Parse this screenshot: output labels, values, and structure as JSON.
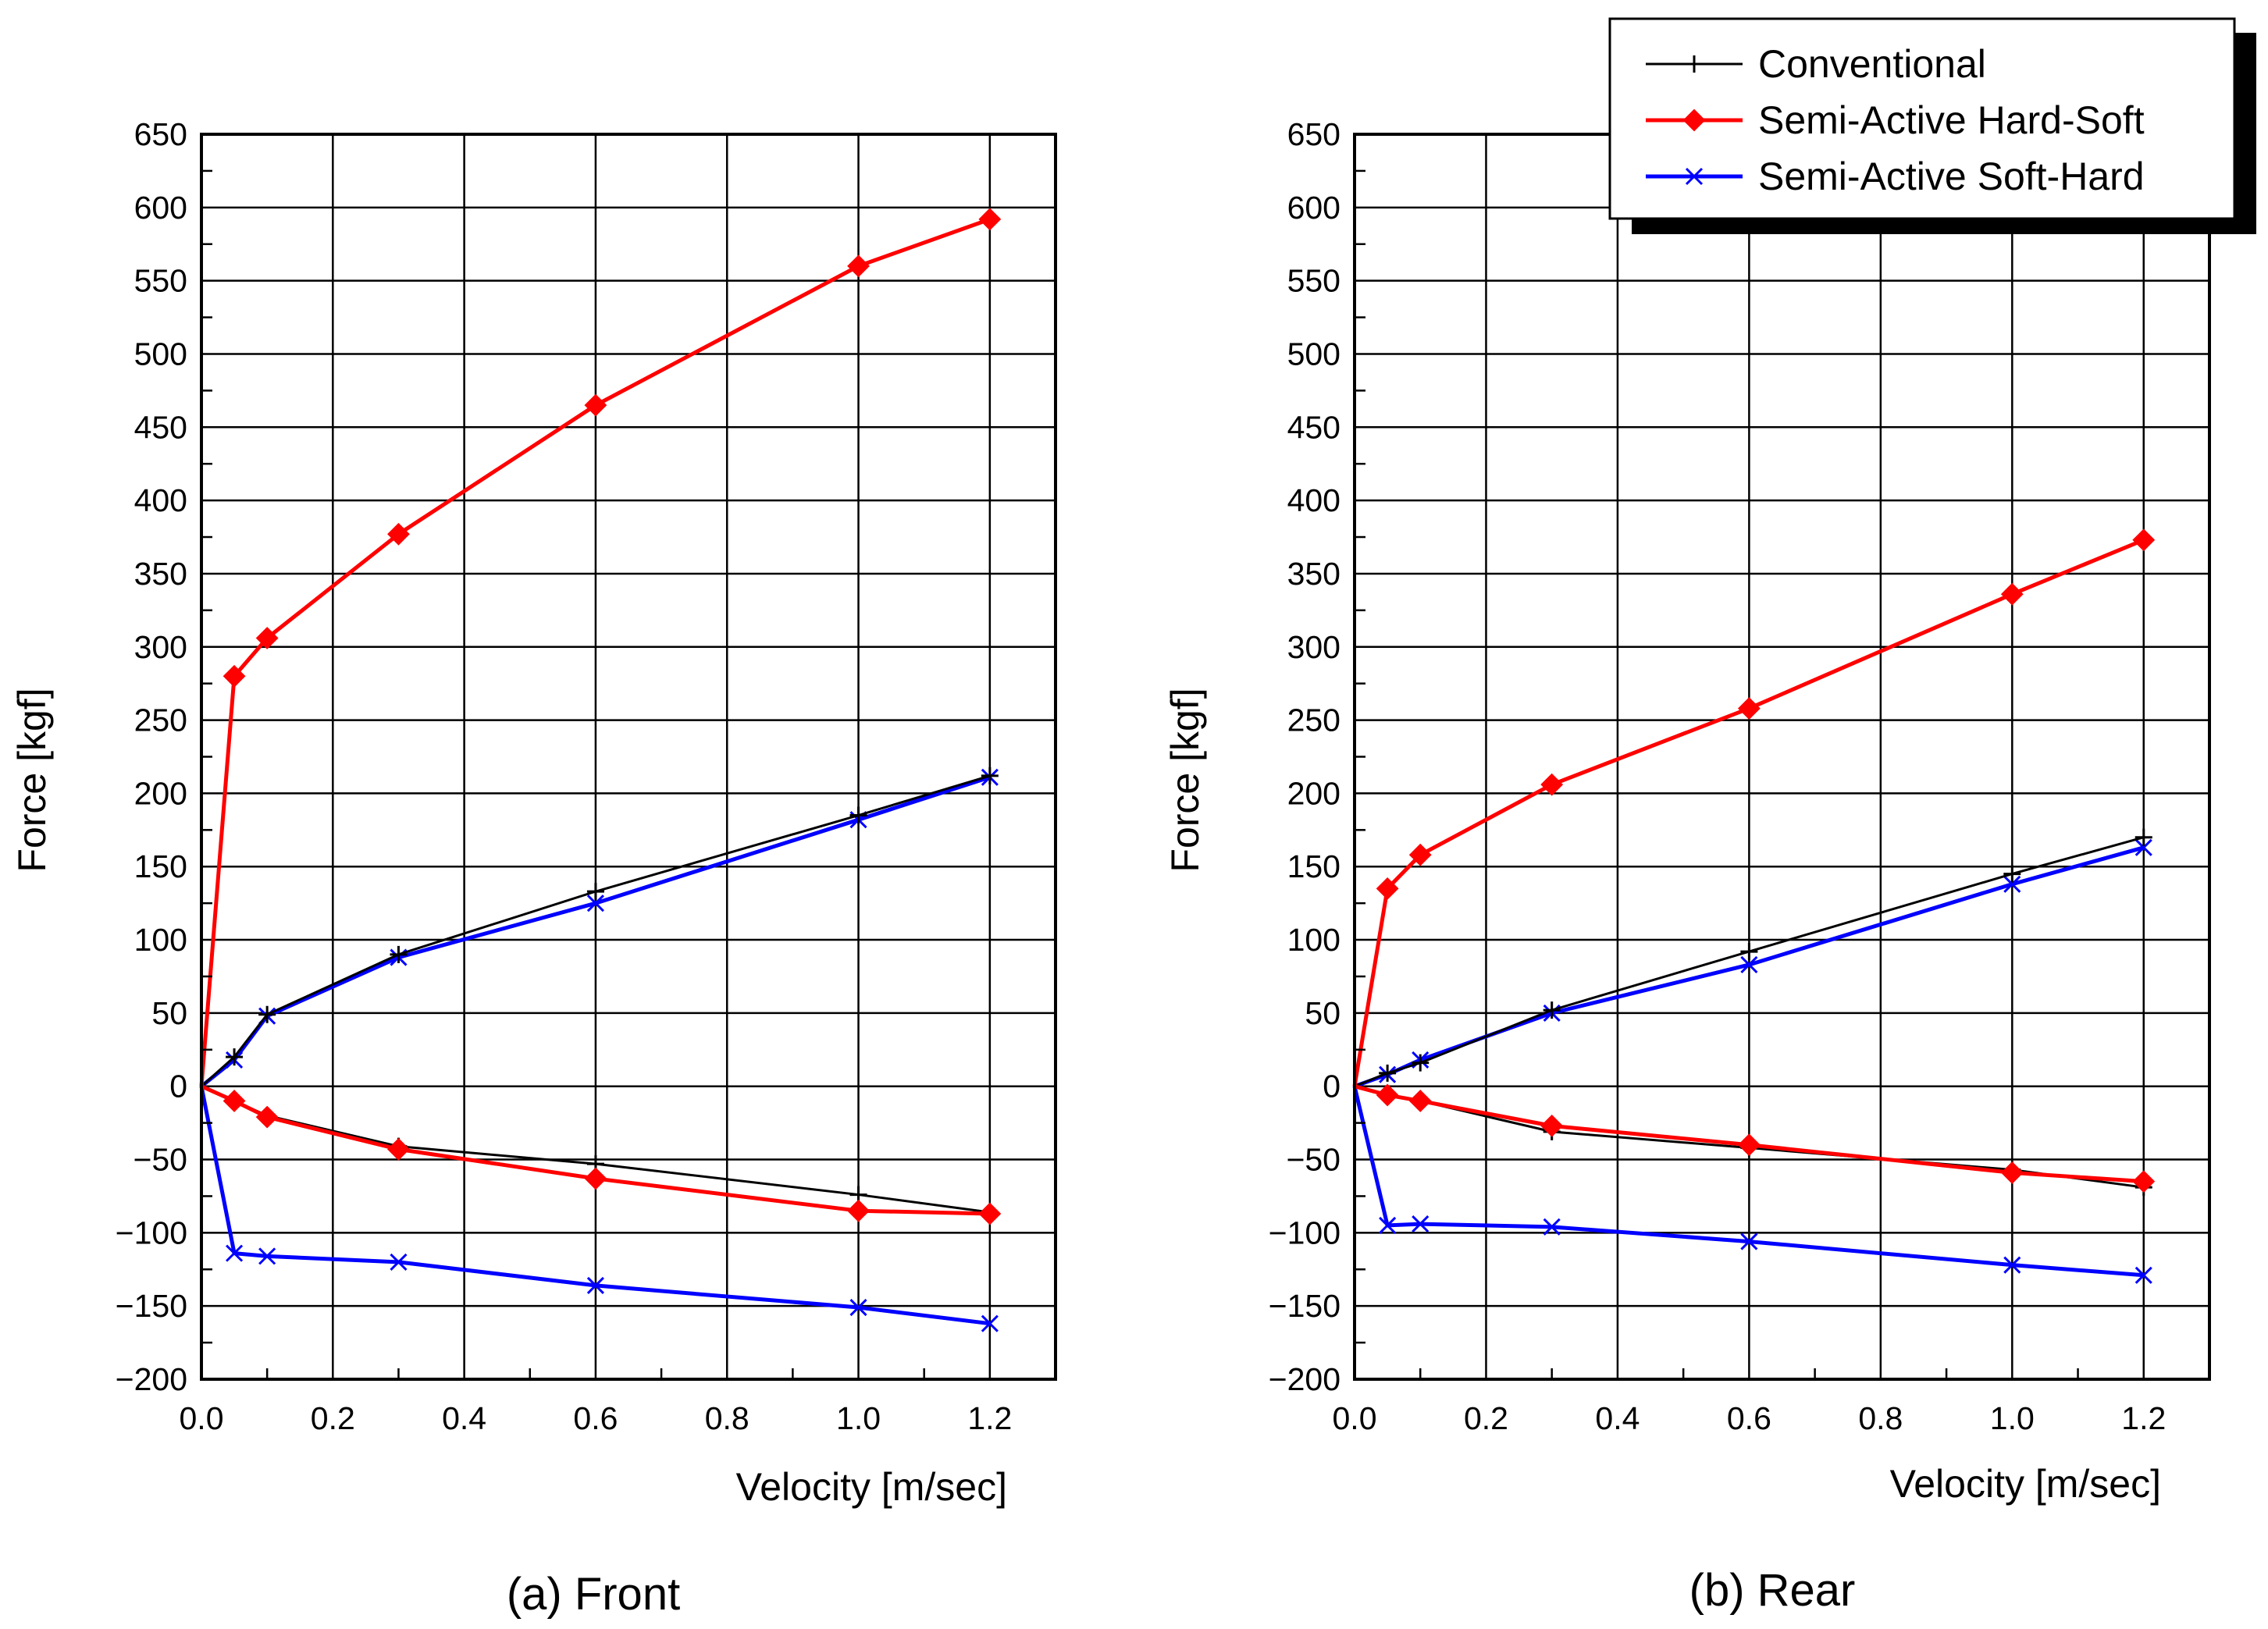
{
  "chart_data": [
    {
      "type": "line",
      "caption": "(a) Front",
      "xlabel": "Velocity [m/sec]",
      "ylabel": "Force [kgf]",
      "xlim": [
        0,
        1.3
      ],
      "ylim": [
        -200,
        650
      ],
      "xticks": [
        "0.0",
        "0.2",
        "0.4",
        "0.6",
        "0.8",
        "1.0",
        "1.2"
      ],
      "yticks": [
        "650",
        "600",
        "550",
        "500",
        "450",
        "400",
        "350",
        "300",
        "250",
        "200",
        "150",
        "100",
        "50",
        "0",
        "−50",
        "−100",
        "−150",
        "−200"
      ],
      "series": [
        {
          "name": "Conventional",
          "branch": "rebound",
          "x": [
            0,
            0.05,
            0.1,
            0.3,
            0.6,
            1.0,
            1.2
          ],
          "y": [
            0,
            20,
            49,
            90,
            133,
            185,
            212
          ]
        },
        {
          "name": "Conventional",
          "branch": "compression",
          "x": [
            0,
            0.05,
            0.1,
            0.3,
            0.6,
            1.0,
            1.2
          ],
          "y": [
            0,
            -10,
            -20,
            -41,
            -53,
            -74,
            -86
          ]
        },
        {
          "name": "Semi-Active Hard-Soft",
          "branch": "rebound",
          "x": [
            0,
            0.05,
            0.1,
            0.3,
            0.6,
            1.0,
            1.2
          ],
          "y": [
            0,
            280,
            306,
            377,
            465,
            560,
            592
          ]
        },
        {
          "name": "Semi-Active Hard-Soft",
          "branch": "compression",
          "x": [
            0,
            0.05,
            0.1,
            0.3,
            0.6,
            1.0,
            1.2
          ],
          "y": [
            0,
            -10,
            -21,
            -43,
            -63,
            -85,
            -87
          ]
        },
        {
          "name": "Semi-Active Soft-Hard",
          "branch": "rebound",
          "x": [
            0,
            0.05,
            0.1,
            0.3,
            0.6,
            1.0,
            1.2
          ],
          "y": [
            0,
            18,
            48,
            88,
            125,
            182,
            211
          ]
        },
        {
          "name": "Semi-Active Soft-Hard",
          "branch": "compression",
          "x": [
            0,
            0.05,
            0.1,
            0.3,
            0.6,
            1.0,
            1.2
          ],
          "y": [
            0,
            -114,
            -116,
            -120,
            -136,
            -151,
            -162
          ]
        }
      ]
    },
    {
      "type": "line",
      "caption": "(b) Rear",
      "xlabel": "Velocity [m/sec]",
      "ylabel": "Force [kgf]",
      "xlim": [
        0,
        1.3
      ],
      "ylim": [
        -200,
        650
      ],
      "xticks": [
        "0.0",
        "0.2",
        "0.4",
        "0.6",
        "0.8",
        "1.0",
        "1.2"
      ],
      "yticks": [
        "650",
        "600",
        "550",
        "500",
        "450",
        "400",
        "350",
        "300",
        "250",
        "200",
        "150",
        "100",
        "50",
        "0",
        "−50",
        "−100",
        "−150",
        "−200"
      ],
      "series": [
        {
          "name": "Conventional",
          "branch": "rebound",
          "x": [
            0,
            0.05,
            0.1,
            0.3,
            0.6,
            1.0,
            1.2
          ],
          "y": [
            0,
            9,
            16,
            52,
            92,
            145,
            170
          ]
        },
        {
          "name": "Conventional",
          "branch": "compression",
          "x": [
            0,
            0.05,
            0.1,
            0.3,
            0.6,
            1.0,
            1.2
          ],
          "y": [
            0,
            -6,
            -10,
            -31,
            -42,
            -57,
            -69
          ]
        },
        {
          "name": "Semi-Active Hard-Soft",
          "branch": "rebound",
          "x": [
            0,
            0.05,
            0.1,
            0.3,
            0.6,
            1.0,
            1.2
          ],
          "y": [
            0,
            135,
            158,
            206,
            258,
            336,
            373
          ]
        },
        {
          "name": "Semi-Active Hard-Soft",
          "branch": "compression",
          "x": [
            0,
            0.05,
            0.1,
            0.3,
            0.6,
            1.0,
            1.2
          ],
          "y": [
            0,
            -6,
            -10,
            -27,
            -40,
            -59,
            -65
          ]
        },
        {
          "name": "Semi-Active Soft-Hard",
          "branch": "rebound",
          "x": [
            0,
            0.05,
            0.1,
            0.3,
            0.6,
            1.0,
            1.2
          ],
          "y": [
            0,
            8,
            18,
            50,
            83,
            138,
            163
          ]
        },
        {
          "name": "Semi-Active Soft-Hard",
          "branch": "compression",
          "x": [
            0,
            0.05,
            0.1,
            0.3,
            0.6,
            1.0,
            1.2
          ],
          "y": [
            0,
            -95,
            -94,
            -96,
            -106,
            -122,
            -129
          ]
        }
      ]
    }
  ],
  "legend": {
    "placement": "top-right",
    "items": [
      {
        "label": "Conventional",
        "color": "#000000",
        "marker": "plus"
      },
      {
        "label": "Semi-Active Hard-Soft",
        "color": "#ff0000",
        "marker": "diamond"
      },
      {
        "label": "Semi-Active Soft-Hard",
        "color": "#0000ff",
        "marker": "x"
      }
    ]
  },
  "colors": {
    "conventional": "#000000",
    "hard_soft": "#ff0000",
    "soft_hard": "#0000ff"
  }
}
